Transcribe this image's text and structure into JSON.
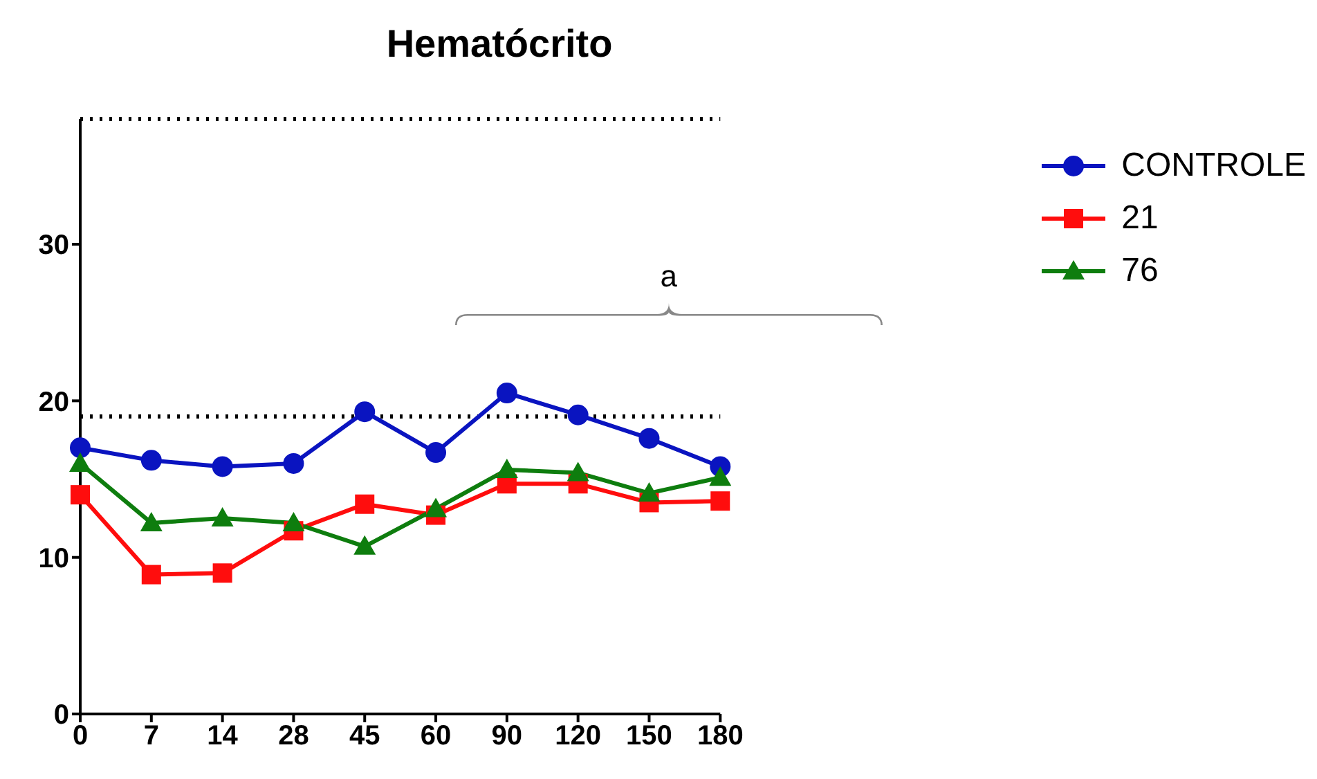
{
  "chart_data": {
    "type": "line",
    "title": "Hematócrito",
    "categories": [
      "0",
      "7",
      "14",
      "28",
      "45",
      "60",
      "90",
      "120",
      "150",
      "180"
    ],
    "series": [
      {
        "name": "CONTROLE",
        "color": "#0a14c0",
        "marker": "circle",
        "values": [
          17.0,
          16.2,
          15.8,
          16.0,
          19.3,
          16.7,
          20.5,
          19.1,
          17.6,
          15.8
        ]
      },
      {
        "name": "21",
        "color": "#ff0d0d",
        "marker": "square",
        "values": [
          14.0,
          8.9,
          9.0,
          11.7,
          13.4,
          12.7,
          14.7,
          14.7,
          13.5,
          13.6
        ]
      },
      {
        "name": "76",
        "color": "#0e7d0e",
        "marker": "triangle",
        "values": [
          16.0,
          12.2,
          12.5,
          12.2,
          10.7,
          13.1,
          15.6,
          15.4,
          14.1,
          15.1
        ]
      }
    ],
    "ylim": [
      0,
      38
    ],
    "yticks": [
      0,
      10,
      20,
      30
    ],
    "grid": false,
    "legend": "top right",
    "ref_lines": [
      {
        "axis": "y",
        "value": 19,
        "line_style": "dotted",
        "color": "#000000"
      },
      {
        "axis": "y",
        "value": 38,
        "line_style": "dotted",
        "color": "#000000"
      }
    ],
    "annotations": [
      "a"
    ]
  }
}
